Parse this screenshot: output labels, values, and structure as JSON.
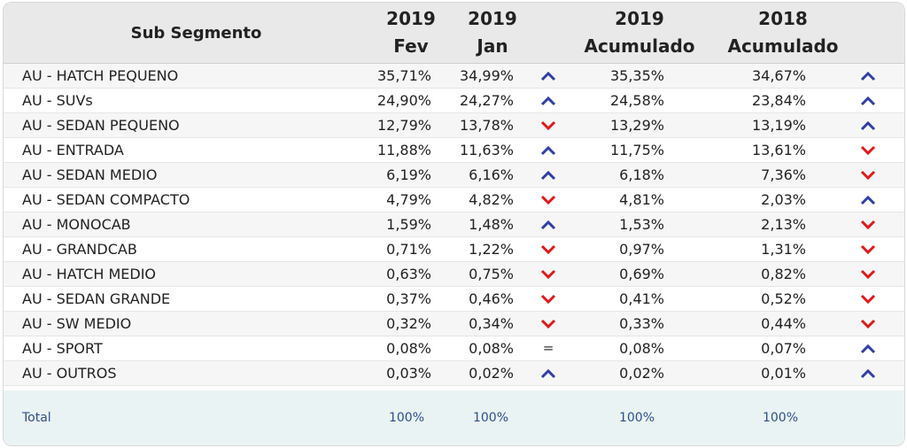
{
  "header": {
    "segment_label": "Sub Segmento",
    "columns": [
      {
        "year": "2019",
        "sub": "Fev"
      },
      {
        "year": "2019",
        "sub": "Jan"
      },
      {
        "year": "2019",
        "sub": "Acumulado"
      },
      {
        "year": "2018",
        "sub": "Acumulado"
      }
    ]
  },
  "colors": {
    "up": "#2f3fa8",
    "down": "#e0191b",
    "header_bg": "#e9e9e9",
    "total_bg": "#eaf3f3"
  },
  "rows": [
    {
      "segment": "AU - HATCH PEQUENO",
      "fev_2019": "35,71%",
      "jan_2019": "34,99%",
      "trend_month": "up",
      "acum_2019": "35,35%",
      "acum_2018": "34,67%",
      "trend_year": "up"
    },
    {
      "segment": "AU - SUVs",
      "fev_2019": "24,90%",
      "jan_2019": "24,27%",
      "trend_month": "up",
      "acum_2019": "24,58%",
      "acum_2018": "23,84%",
      "trend_year": "up"
    },
    {
      "segment": "AU - SEDAN PEQUENO",
      "fev_2019": "12,79%",
      "jan_2019": "13,78%",
      "trend_month": "down",
      "acum_2019": "13,29%",
      "acum_2018": "13,19%",
      "trend_year": "up"
    },
    {
      "segment": "AU - ENTRADA",
      "fev_2019": "11,88%",
      "jan_2019": "11,63%",
      "trend_month": "up",
      "acum_2019": "11,75%",
      "acum_2018": "13,61%",
      "trend_year": "down"
    },
    {
      "segment": "AU - SEDAN MEDIO",
      "fev_2019": "6,19%",
      "jan_2019": "6,16%",
      "trend_month": "up",
      "acum_2019": "6,18%",
      "acum_2018": "7,36%",
      "trend_year": "down"
    },
    {
      "segment": "AU - SEDAN COMPACTO",
      "fev_2019": "4,79%",
      "jan_2019": "4,82%",
      "trend_month": "down",
      "acum_2019": "4,81%",
      "acum_2018": "2,03%",
      "trend_year": "up"
    },
    {
      "segment": "AU - MONOCAB",
      "fev_2019": "1,59%",
      "jan_2019": "1,48%",
      "trend_month": "up",
      "acum_2019": "1,53%",
      "acum_2018": "2,13%",
      "trend_year": "down"
    },
    {
      "segment": "AU - GRANDCAB",
      "fev_2019": "0,71%",
      "jan_2019": "1,22%",
      "trend_month": "down",
      "acum_2019": "0,97%",
      "acum_2018": "1,31%",
      "trend_year": "down"
    },
    {
      "segment": "AU - HATCH MEDIO",
      "fev_2019": "0,63%",
      "jan_2019": "0,75%",
      "trend_month": "down",
      "acum_2019": "0,69%",
      "acum_2018": "0,82%",
      "trend_year": "down"
    },
    {
      "segment": "AU - SEDAN GRANDE",
      "fev_2019": "0,37%",
      "jan_2019": "0,46%",
      "trend_month": "down",
      "acum_2019": "0,41%",
      "acum_2018": "0,52%",
      "trend_year": "down"
    },
    {
      "segment": "AU - SW MEDIO",
      "fev_2019": "0,32%",
      "jan_2019": "0,34%",
      "trend_month": "down",
      "acum_2019": "0,33%",
      "acum_2018": "0,44%",
      "trend_year": "down"
    },
    {
      "segment": "AU - SPORT",
      "fev_2019": "0,08%",
      "jan_2019": "0,08%",
      "trend_month": "equal",
      "acum_2019": "0,08%",
      "acum_2018": "0,07%",
      "trend_year": "up"
    },
    {
      "segment": "AU - OUTROS",
      "fev_2019": "0,03%",
      "jan_2019": "0,02%",
      "trend_month": "up",
      "acum_2019": "0,02%",
      "acum_2018": "0,01%",
      "trend_year": "up"
    }
  ],
  "total": {
    "label": "Total",
    "fev_2019": "100%",
    "jan_2019": "100%",
    "acum_2019": "100%",
    "acum_2018": "100%"
  }
}
